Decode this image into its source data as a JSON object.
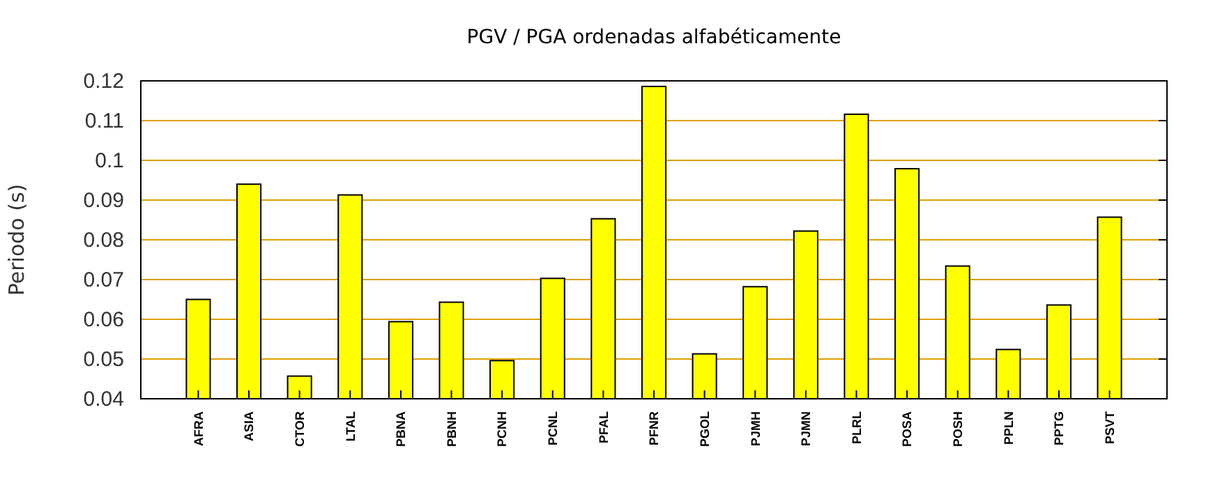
{
  "chart_data": {
    "type": "bar",
    "title": "PGV / PGA ordenadas alfabéticamente",
    "ylabel": "Periodo (s)",
    "categories": [
      "AFRA",
      "ASIA",
      "CTOR",
      "LTAL",
      "PBNA",
      "PBNH",
      "PCNH",
      "PCNL",
      "PFAL",
      "PFNR",
      "PGOL",
      "PJMH",
      "PJMN",
      "PLRL",
      "POSA",
      "POSH",
      "PPLN",
      "PPTG",
      "PSVT"
    ],
    "values": [
      0.065,
      0.094,
      0.0457,
      0.0913,
      0.0594,
      0.0643,
      0.0496,
      0.0703,
      0.0853,
      0.1186,
      0.0513,
      0.0682,
      0.0822,
      0.1116,
      0.0979,
      0.0734,
      0.0524,
      0.0636,
      0.0857
    ],
    "color": "#ffff00",
    "ylim": [
      0.04,
      0.12
    ],
    "yticks": [
      0.04,
      0.05,
      0.06,
      0.07,
      0.08,
      0.09,
      0.1,
      0.11,
      0.12
    ],
    "grid": "y"
  }
}
